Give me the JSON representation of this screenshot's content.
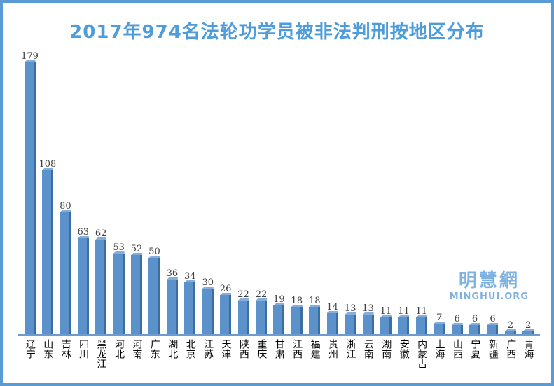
{
  "title": "2017年974名法轮功学员被非法判刑按地区分布",
  "watermark": {
    "cjk": "明慧網",
    "latin": "MINGHUI.ORG"
  },
  "colors": {
    "frame_border": "#5B9BD5",
    "background": "#FFFFFF",
    "title_text": "#4E9CD9",
    "bar_face": "#5B92CC",
    "bar_shadow": "#3C6E9F",
    "bar_highlight": "#85AEDB",
    "axis_line": "#6C9BD2",
    "value_label": "#404040",
    "category_label": "#000000",
    "watermark_text": "#7FB2E0"
  },
  "chart_data": {
    "type": "bar",
    "title": "2017年974名法轮功学员被非法判刑按地区分布",
    "categories": [
      "辽宁",
      "山东",
      "吉林",
      "四川",
      "黑龙江",
      "河北",
      "河南",
      "广东",
      "湖北",
      "北京",
      "江苏",
      "天津",
      "陕西",
      "重庆",
      "甘肃",
      "江西",
      "福建",
      "贵州",
      "浙江",
      "云南",
      "湖南",
      "安徽",
      "内蒙古",
      "上海",
      "山西",
      "宁夏",
      "新疆",
      "广西",
      "青海"
    ],
    "values": [
      179,
      108,
      80,
      63,
      62,
      53,
      52,
      50,
      36,
      34,
      30,
      26,
      22,
      22,
      19,
      18,
      18,
      14,
      13,
      13,
      11,
      11,
      11,
      7,
      6,
      6,
      6,
      2,
      2
    ],
    "total": 974,
    "xlabel": "",
    "ylabel": "",
    "ylim": [
      0,
      190
    ],
    "grid": false,
    "legend": "none",
    "value_labels_shown": true,
    "category_label_orientation": "vertical"
  }
}
